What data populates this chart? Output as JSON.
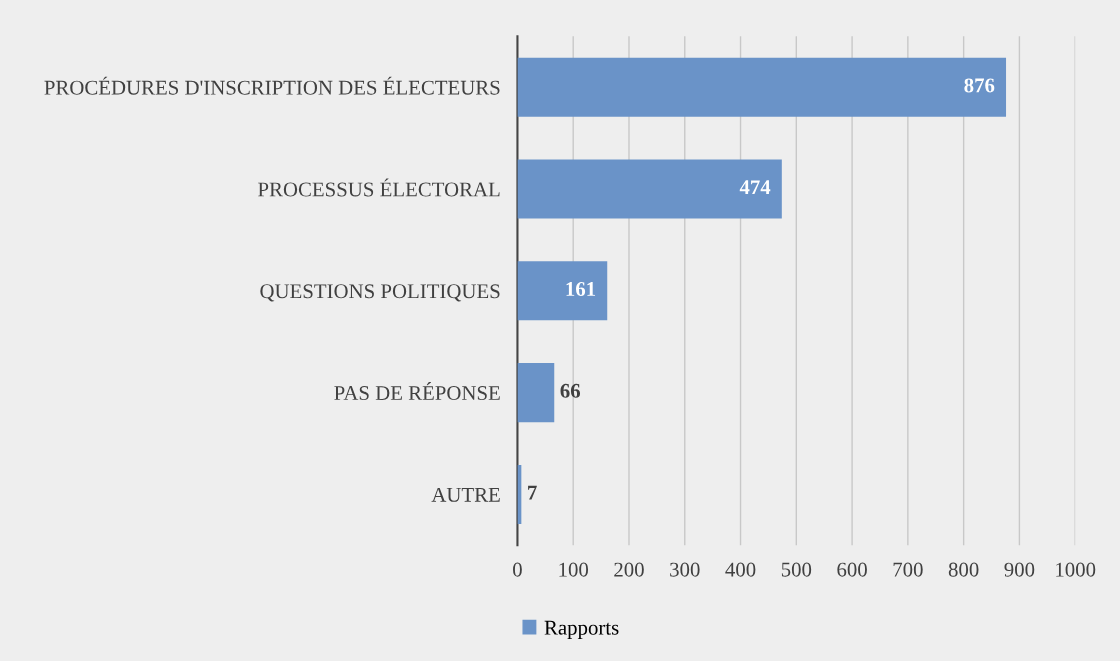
{
  "chart_data": {
    "type": "bar",
    "orientation": "horizontal",
    "categories": [
      "PROCÉDURES D'INSCRIPTION DES ÉLECTEURS",
      "PROCESSUS ÉLECTORAL",
      "QUESTIONS POLITIQUES",
      "PAS DE RÉPONSE",
      "AUTRE"
    ],
    "series": [
      {
        "name": "Rapports",
        "color": "#6a93c8",
        "values": [
          876,
          474,
          161,
          66,
          7
        ]
      }
    ],
    "xlim": [
      0,
      1000
    ],
    "xticks": [
      0,
      100,
      200,
      300,
      400,
      500,
      600,
      700,
      800,
      900,
      1000
    ],
    "grid": "x",
    "legend": "bottom",
    "data_labels": true
  }
}
